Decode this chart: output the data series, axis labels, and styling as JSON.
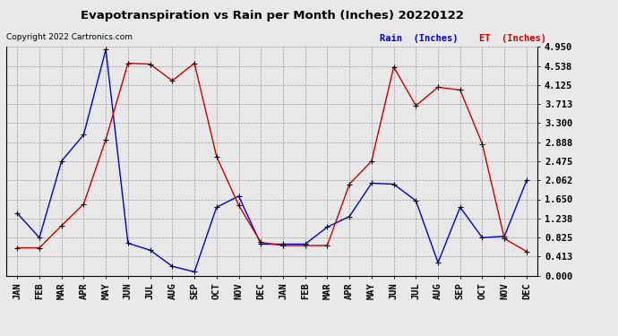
{
  "title": "Evapotranspiration vs Rain per Month (Inches) 20220122",
  "copyright": "Copyright 2022 Cartronics.com",
  "legend_rain": "Rain  (Inches)",
  "legend_et": "ET  (Inches)",
  "months": [
    "JAN",
    "FEB",
    "MAR",
    "APR",
    "MAY",
    "JUN",
    "JUL",
    "AUG",
    "SEP",
    "OCT",
    "NOV",
    "DEC",
    "JAN",
    "FEB",
    "MAR",
    "APR",
    "MAY",
    "JUN",
    "JUL",
    "AUG",
    "SEP",
    "OCT",
    "NOV",
    "DEC"
  ],
  "rain": [
    1.35,
    0.82,
    2.48,
    3.05,
    4.9,
    0.7,
    0.55,
    0.2,
    0.08,
    1.48,
    1.72,
    0.68,
    0.68,
    0.68,
    1.05,
    1.28,
    2.0,
    1.98,
    1.62,
    0.28,
    1.48,
    0.82,
    0.85,
    2.06
  ],
  "et": [
    0.6,
    0.6,
    1.08,
    1.55,
    2.95,
    4.6,
    4.58,
    4.22,
    4.6,
    2.58,
    1.52,
    0.72,
    0.65,
    0.65,
    0.65,
    1.98,
    2.48,
    4.52,
    3.68,
    4.08,
    4.02,
    2.85,
    0.8,
    0.52
  ],
  "ylim": [
    0.0,
    4.95
  ],
  "yticks": [
    0.0,
    0.413,
    0.825,
    1.238,
    1.65,
    2.062,
    2.475,
    2.888,
    3.3,
    3.713,
    4.125,
    4.538,
    4.95
  ],
  "rain_color": "#0000cc",
  "et_color": "#cc0000",
  "bg_color": "#e8e8e8",
  "grid_color": "#999999",
  "title_color": "#000000",
  "copyright_color": "#000000",
  "legend_rain_color": "#0000cc",
  "legend_et_color": "#cc0000",
  "title_fontsize": 9.5,
  "tick_fontsize": 7.5,
  "copyright_fontsize": 6.5
}
